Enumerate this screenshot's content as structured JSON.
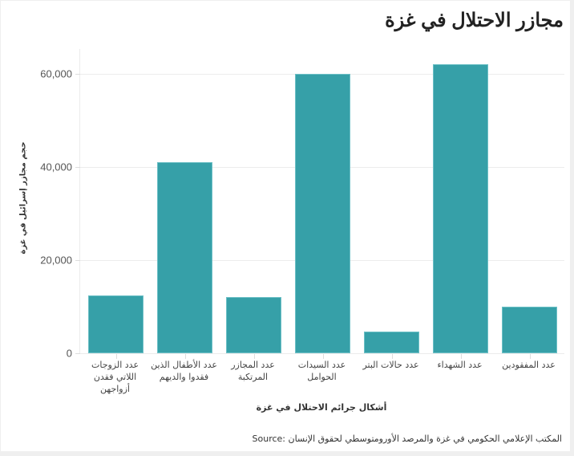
{
  "chart_data": {
    "type": "bar",
    "title": "مجازر الاحتلال في غزة",
    "xlabel": "أشكال جرائم الاحتلال في غزة",
    "ylabel": "حجم مجازر إسرائيل في غزة",
    "categories": [
      "عدد الزوجات اللاتي فقدن أزواجهن",
      "عدد الأطفال الذين فقدوا والديهم",
      "عدد المجازر المرتكبة",
      "عدد السيدات الحوامل",
      "عدد حالات البتر",
      "عدد الشهداء",
      "عدد المفقودين"
    ],
    "values": [
      12500,
      41000,
      12000,
      60000,
      4700,
      62000,
      10000
    ],
    "ylim": [
      0,
      65000
    ],
    "yticks": [
      0,
      20000,
      40000,
      60000
    ],
    "ytick_labels": [
      "0",
      "20,000",
      "40,000",
      "60,000"
    ],
    "grid": true,
    "legend": "none",
    "bar_color": "#36a0a8",
    "source": "المكتب الإعلامي الحكومي في غزة والمرصد الأورومتوسطي لحقوق الإنسان :Source"
  },
  "labels": {
    "title": "مجازر الاحتلال في غزة",
    "ylabel": "حجم مجازر إسرائيل في غزة",
    "xlabel": "أشكال جرائم الاحتلال في غزة",
    "source": "المكتب الإعلامي الحكومي في غزة والمرصد الأورومتوسطي لحقوق الإنسان :Source",
    "yticks": [
      "0",
      "20,000",
      "40,000",
      "60,000"
    ],
    "cats": [
      [
        "عدد الزوجات",
        "اللاتي فقدن",
        "أزواجهن"
      ],
      [
        "عدد الأطفال الذين",
        "فقدوا والديهم"
      ],
      [
        "عدد المجازر",
        "المرتكبة"
      ],
      [
        "عدد السيدات",
        "الحوامل"
      ],
      [
        "عدد حالات البتر"
      ],
      [
        "عدد الشهداء"
      ],
      [
        "عدد المفقودين"
      ]
    ]
  }
}
